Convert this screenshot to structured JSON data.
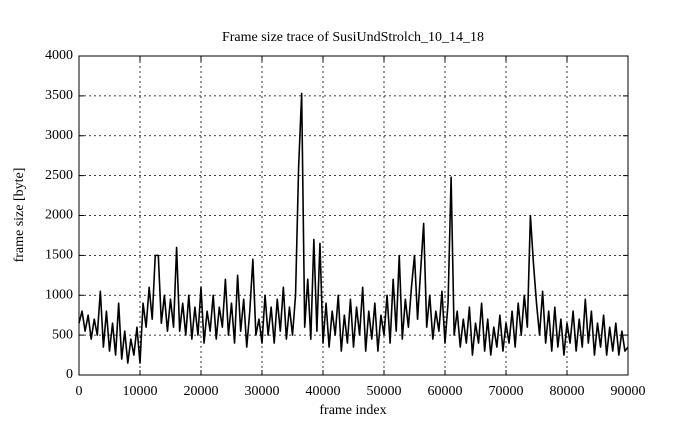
{
  "chart_data": {
    "type": "line",
    "title": "Frame size trace of SusiUndStrolch_10_14_18",
    "xlabel": "frame index",
    "ylabel": "frame size [byte]",
    "xlim": [
      0,
      90000
    ],
    "ylim": [
      0,
      4000
    ],
    "xticks": [
      0,
      10000,
      20000,
      30000,
      40000,
      50000,
      60000,
      70000,
      80000,
      90000
    ],
    "yticks": [
      0,
      500,
      1000,
      1500,
      2000,
      2500,
      3000,
      3500,
      4000
    ],
    "grid": true,
    "series": [
      {
        "color": "#000000",
        "x": [
          0,
          500,
          1000,
          1500,
          2000,
          2500,
          3000,
          3500,
          4000,
          4500,
          5000,
          5500,
          6000,
          6500,
          7000,
          7500,
          8000,
          8500,
          9000,
          9500,
          10000,
          10500,
          11000,
          11500,
          12000,
          12500,
          13000,
          13500,
          14000,
          14500,
          15000,
          15500,
          16000,
          16500,
          17000,
          17500,
          18000,
          18500,
          19000,
          19500,
          20000,
          20500,
          21000,
          21500,
          22000,
          22500,
          23000,
          23500,
          24000,
          24500,
          25000,
          25500,
          26000,
          26500,
          27000,
          27500,
          28000,
          28500,
          29000,
          29500,
          30000,
          30500,
          31000,
          31500,
          32000,
          32500,
          33000,
          33500,
          34000,
          34500,
          35000,
          35500,
          36000,
          36500,
          37000,
          37500,
          38000,
          38500,
          39000,
          39500,
          40000,
          40500,
          41000,
          41500,
          42000,
          42500,
          43000,
          43500,
          44000,
          44500,
          45000,
          45500,
          46000,
          46500,
          47000,
          47500,
          48000,
          48500,
          49000,
          49500,
          50000,
          50500,
          51000,
          51500,
          52000,
          52500,
          53000,
          53500,
          54000,
          54500,
          55000,
          55500,
          56000,
          56500,
          57000,
          57500,
          58000,
          58500,
          59000,
          59500,
          60000,
          60500,
          61000,
          61500,
          62000,
          62500,
          63000,
          63500,
          64000,
          64500,
          65000,
          65500,
          66000,
          66500,
          67000,
          67500,
          68000,
          68500,
          69000,
          69500,
          70000,
          70500,
          71000,
          71500,
          72000,
          72500,
          73000,
          73500,
          74000,
          74500,
          75000,
          75500,
          76000,
          76500,
          77000,
          77500,
          78000,
          78500,
          79000,
          79500,
          80000,
          80500,
          81000,
          81500,
          82000,
          82500,
          83000,
          83500,
          84000,
          84500,
          85000,
          85500,
          86000,
          86500,
          87000,
          87500,
          88000,
          88500,
          89000,
          89500,
          90000
        ],
        "values": [
          650,
          800,
          550,
          750,
          450,
          700,
          500,
          1050,
          350,
          800,
          300,
          650,
          250,
          900,
          200,
          550,
          150,
          450,
          250,
          600,
          150,
          900,
          600,
          1100,
          700,
          1500,
          1500,
          650,
          1000,
          550,
          950,
          600,
          1600,
          550,
          900,
          500,
          1000,
          450,
          850,
          500,
          1100,
          400,
          800,
          550,
          1000,
          450,
          850,
          600,
          1200,
          500,
          900,
          400,
          1250,
          550,
          950,
          350,
          800,
          1450,
          500,
          700,
          400,
          1000,
          500,
          850,
          400,
          950,
          550,
          1100,
          450,
          850,
          500,
          1000,
          2600,
          3530,
          600,
          1200,
          450,
          1700,
          550,
          1650,
          400,
          900,
          350,
          800,
          500,
          1000,
          300,
          750,
          400,
          950,
          350,
          850,
          500,
          1100,
          300,
          800,
          450,
          900,
          300,
          750,
          500,
          1000,
          400,
          1200,
          550,
          1500,
          450,
          950,
          600,
          1100,
          1500,
          700,
          1300,
          1900,
          600,
          1000,
          450,
          800,
          550,
          1050,
          400,
          900,
          2480,
          500,
          800,
          350,
          700,
          400,
          850,
          250,
          650,
          400,
          900,
          300,
          700,
          250,
          600,
          350,
          750,
          300,
          650,
          400,
          800,
          350,
          900,
          500,
          1000,
          600,
          2000,
          1400,
          900,
          500,
          1050,
          400,
          800,
          300,
          850,
          350,
          700,
          250,
          650,
          400,
          800,
          300,
          700,
          350,
          950,
          400,
          800,
          250,
          650,
          350,
          750,
          250,
          600,
          300,
          650,
          250,
          550,
          300,
          350
        ]
      }
    ]
  }
}
